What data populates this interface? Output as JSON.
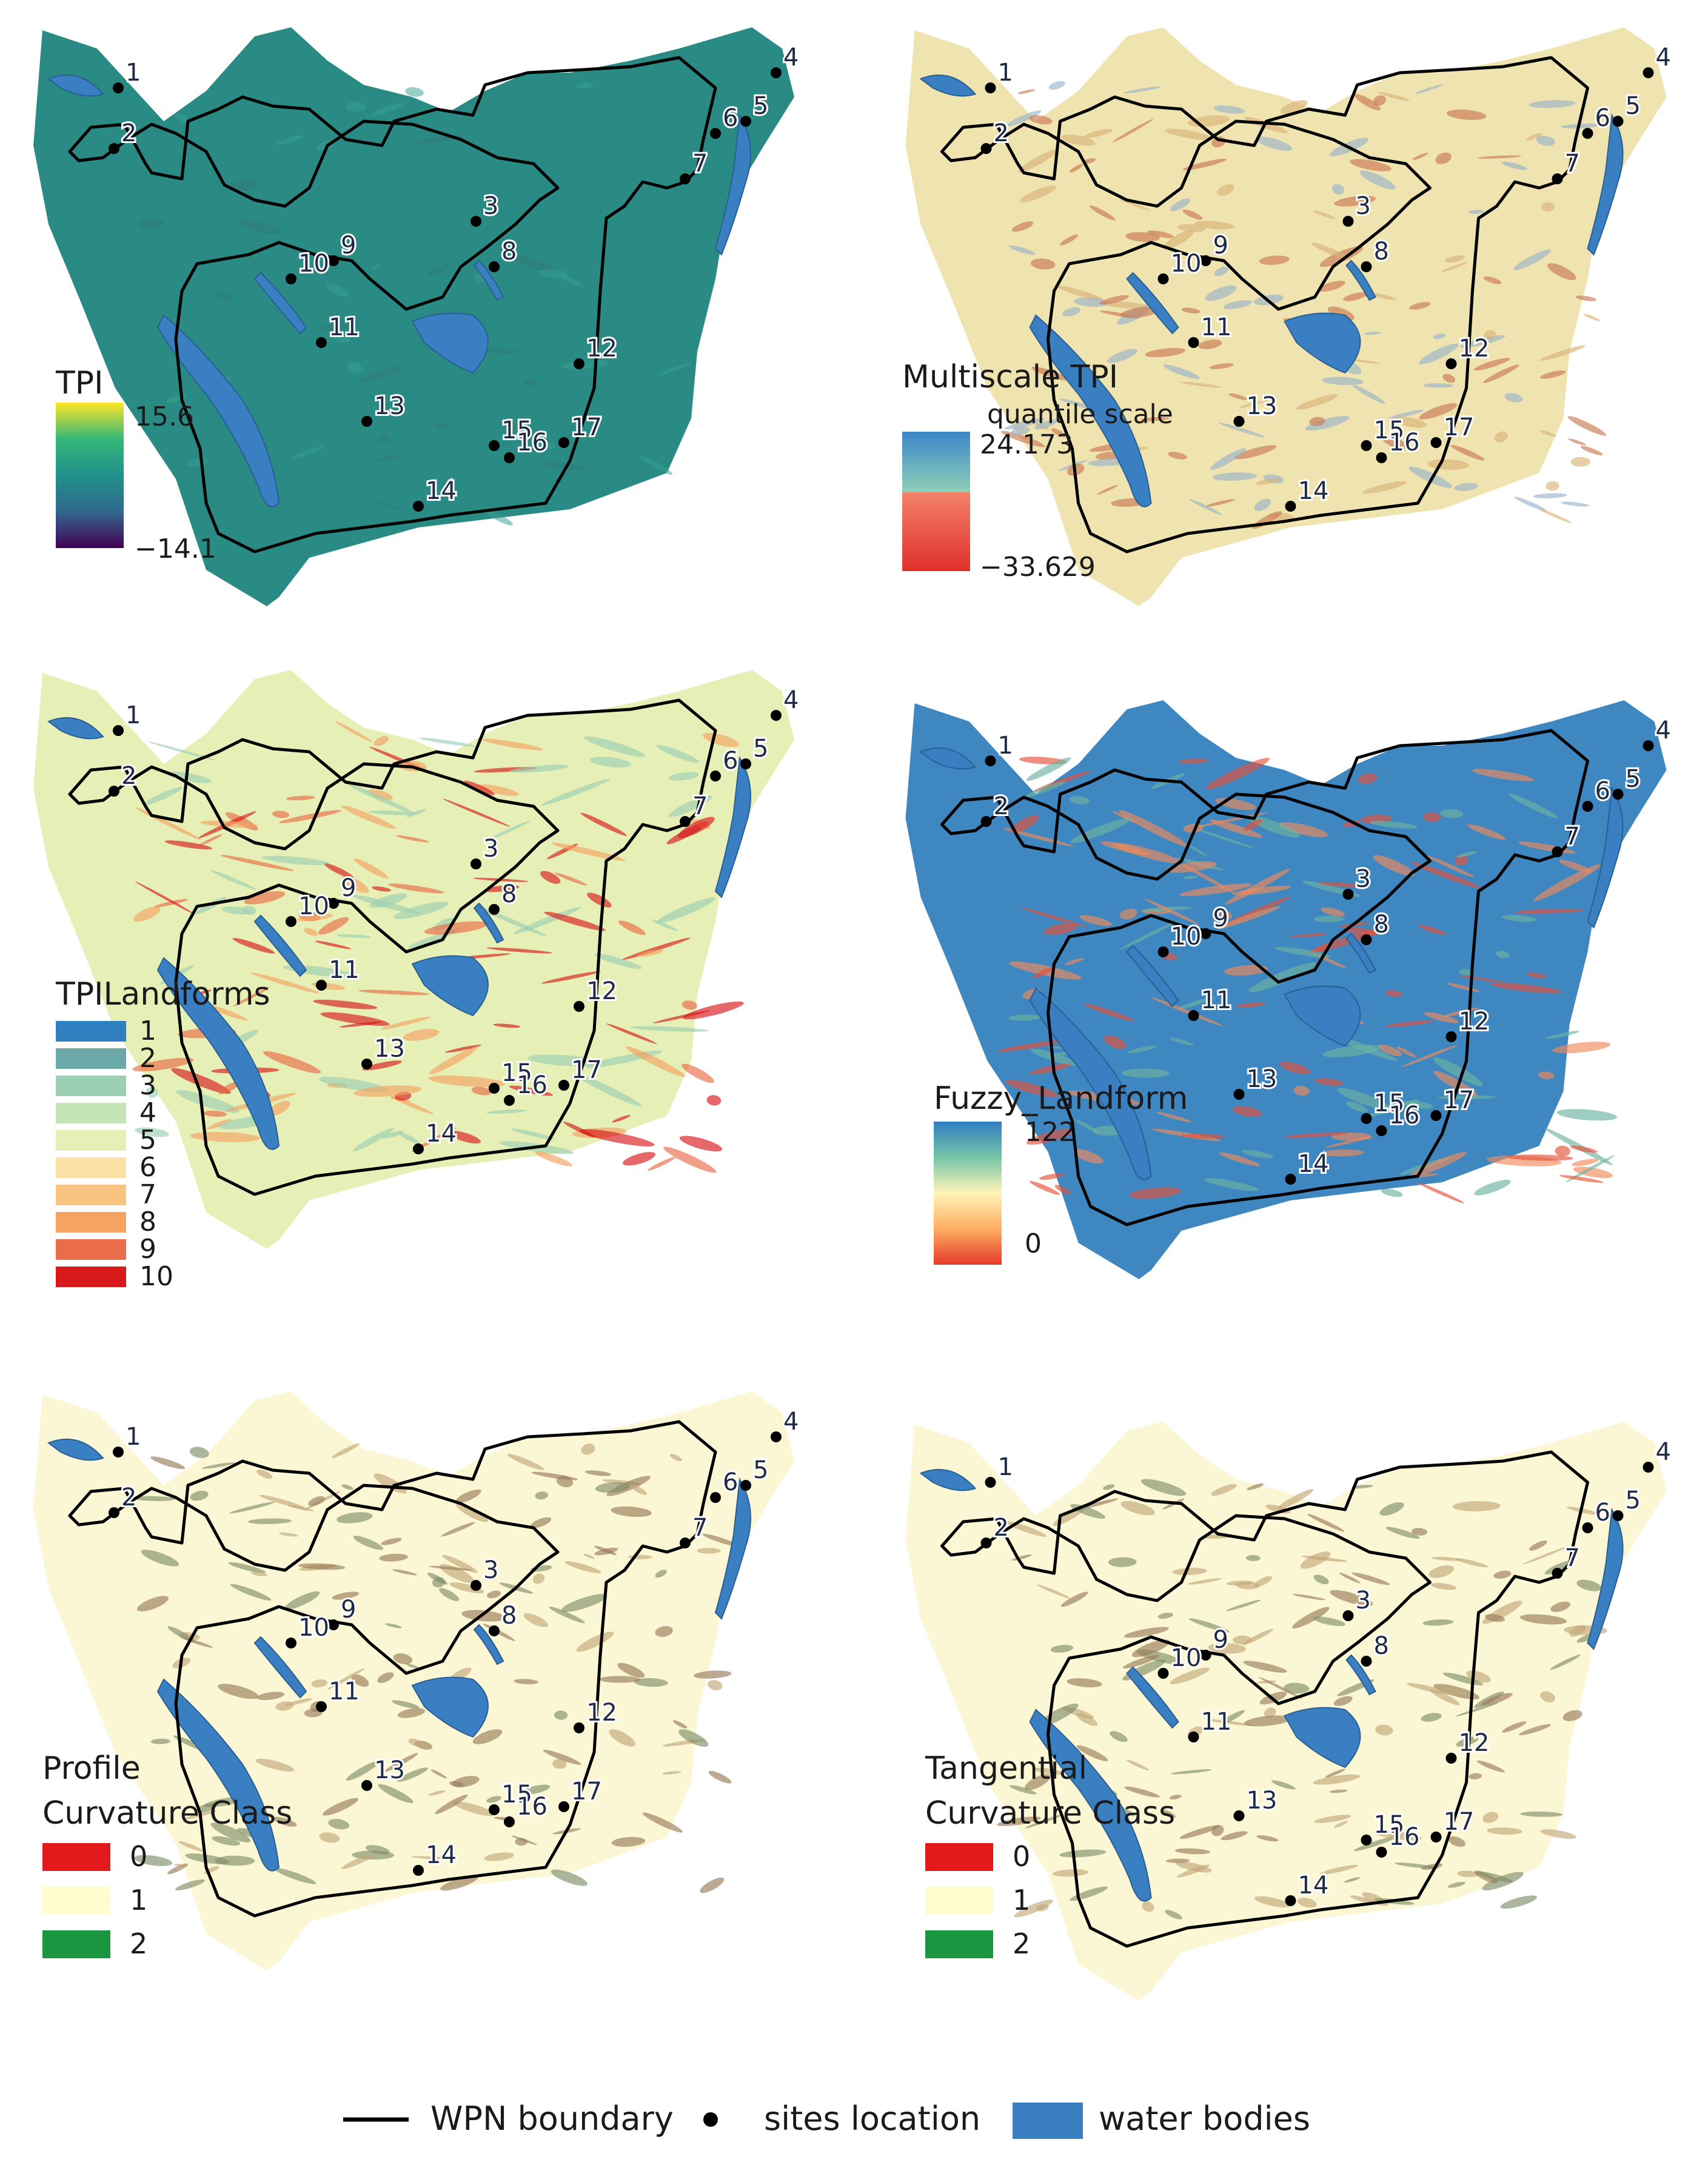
{
  "panels": [
    {
      "id": "tpi",
      "legend": {
        "title": "TPI",
        "max": "15.6",
        "min": "−14.1"
      },
      "colors": {
        "fill": "#2a8a84",
        "ramp": [
          "#440154",
          "#31688e",
          "#21918c",
          "#35b779",
          "#fde725"
        ]
      }
    },
    {
      "id": "multiscale-tpi",
      "legend": {
        "title": "Multiscale TPI",
        "subtitle": "quantile scale",
        "max": "24.173",
        "min": "−33.629"
      },
      "colors": {
        "fill": "#efe3b0",
        "ramp_top": [
          "#3a86c8",
          "#8fd0b8"
        ],
        "ramp_bottom": [
          "#f4826a",
          "#e0302a"
        ]
      }
    },
    {
      "id": "tpi-landforms",
      "legend": {
        "title": "TPILandforms",
        "classes": [
          "1",
          "2",
          "3",
          "4",
          "5",
          "6",
          "7",
          "8",
          "9",
          "10"
        ]
      },
      "colors": {
        "fill": "#e6f0b6",
        "classes": [
          "#2f7fc1",
          "#6aa9a8",
          "#9ccfb4",
          "#c4e6b7",
          "#e6f0b6",
          "#fbe0a6",
          "#f9c382",
          "#f5a262",
          "#ea6c48",
          "#d7191c"
        ]
      }
    },
    {
      "id": "fuzzy-landform",
      "legend": {
        "title": "Fuzzy_Landform",
        "max": "122",
        "min": "0"
      },
      "colors": {
        "fill": "#3f87c0",
        "ramp": [
          "#2f7fc1",
          "#77c4a8",
          "#fff4b8",
          "#fdae61",
          "#e53a2a"
        ]
      }
    },
    {
      "id": "profile-curvature",
      "legend": {
        "title_line1": "Profile",
        "title_line2": "Curvature Class",
        "classes": [
          "0",
          "1",
          "2"
        ]
      },
      "colors": {
        "fill": "#fbf6d4",
        "classes": [
          "#e31a1c",
          "#fffdd0",
          "#1a9641"
        ]
      }
    },
    {
      "id": "tangential-curvature",
      "legend": {
        "title_line1": "Tangential",
        "title_line2": "Curvature Class",
        "classes": [
          "0",
          "1",
          "2"
        ]
      },
      "colors": {
        "fill": "#fbf6d4",
        "classes": [
          "#e31a1c",
          "#fffdd0",
          "#1a9641"
        ]
      }
    }
  ],
  "sites": [
    "1",
    "2",
    "3",
    "4",
    "5",
    "6",
    "7",
    "8",
    "9",
    "10",
    "11",
    "12",
    "13",
    "14",
    "15",
    "16",
    "17"
  ],
  "bottom_legend": {
    "boundary": "WPN boundary",
    "sites": "sites location",
    "water": "water bodies",
    "water_color": "#3a7fc1"
  }
}
